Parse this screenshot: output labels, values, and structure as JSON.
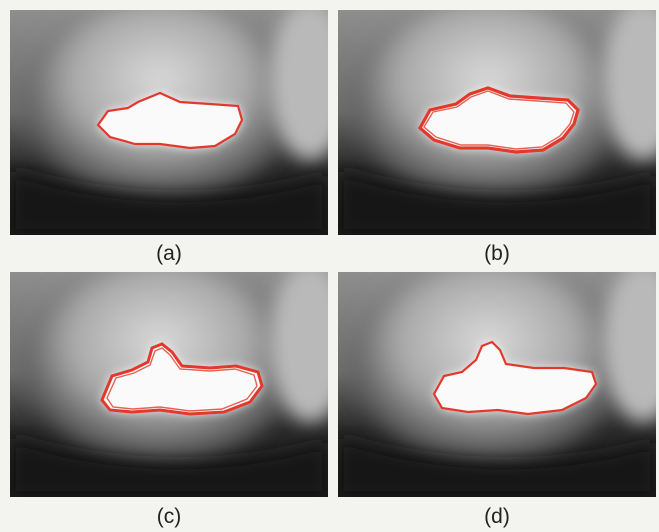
{
  "figure": {
    "panels": [
      {
        "id": "a",
        "caption": "(a)",
        "variant": "thin"
      },
      {
        "id": "b",
        "caption": "(b)",
        "variant": "thick"
      },
      {
        "id": "c",
        "caption": "(c)",
        "variant": "bump"
      },
      {
        "id": "d",
        "caption": "(d)",
        "variant": "clean-bump"
      }
    ],
    "contour_color": "#e2392c",
    "region_color": "#ffffff"
  }
}
